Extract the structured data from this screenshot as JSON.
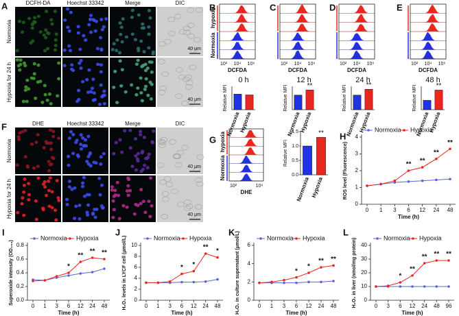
{
  "figure": {
    "micrographs": [
      {
        "label": "A",
        "columns": [
          "DCFH-DA",
          "Hoechst 33342",
          "Merge",
          "DIC"
        ],
        "rows": [
          "Normoxia",
          "Hypoxia for 24 h"
        ],
        "scale_bar": "40 μm"
      },
      {
        "label": "F",
        "columns": [
          "DHE",
          "Hoechst 33342",
          "Merge",
          "DIC"
        ],
        "rows": [
          "Normoxia",
          "Hypoxia for 24 h"
        ],
        "scale_bar": "40 μm"
      }
    ],
    "flow_panels": [
      {
        "rows": [
          "hypoxia",
          "Normoxia"
        ],
        "xlabel": "DCFDA",
        "xticks": [
          "10²",
          "10⁴",
          "10⁶"
        ]
      },
      {
        "xlabel": "DCFDA",
        "xticks": [
          "10²",
          "10⁴",
          "10⁶"
        ]
      },
      {
        "xlabel": "DCFDA",
        "xticks": [
          "10²",
          "10⁴",
          "10⁶"
        ]
      },
      {
        "xlabel": "DCFDA",
        "xticks": [
          "10²",
          "10⁴",
          "10⁶"
        ]
      },
      {
        "label": "G",
        "rows": [
          "hypoxia",
          "Normoxia"
        ],
        "xlabel": "DHE",
        "xticks": [
          "10²",
          "10⁶"
        ]
      }
    ]
  },
  "chart_data": [
    {
      "type": "bar",
      "label": "B",
      "title": "0 h",
      "ylabel": "Relative MFI",
      "categories": [
        "Normoxia",
        "Hypoxia"
      ],
      "values": [
        1.0,
        0.95
      ],
      "colors": [
        "#1f32e6",
        "#e8281e"
      ],
      "significance": [
        null,
        null
      ],
      "ylim": [
        0,
        1.5
      ]
    },
    {
      "type": "bar",
      "label": "C",
      "title": "12 h",
      "ylabel": "Relative MFI",
      "categories": [
        "Normoxia",
        "Hypoxia"
      ],
      "values": [
        1.0,
        1.35
      ],
      "colors": [
        "#1f32e6",
        "#e8281e"
      ],
      "significance": [
        null,
        "**"
      ],
      "ylim": [
        0,
        1.6
      ]
    },
    {
      "type": "bar",
      "label": "D",
      "title": "24 h",
      "ylabel": "Relative MFI",
      "categories": [
        "Normoxia",
        "Hypoxia"
      ],
      "values": [
        1.0,
        1.4
      ],
      "colors": [
        "#1f32e6",
        "#e8281e"
      ],
      "significance": [
        null,
        "**"
      ],
      "ylim": [
        0,
        1.6
      ]
    },
    {
      "type": "bar",
      "label": "E",
      "title": "48 h",
      "ylabel": "Relative MFI",
      "categories": [
        "Normoxia",
        "Hypoxia"
      ],
      "values": [
        1.0,
        2.1
      ],
      "colors": [
        "#1f32e6",
        "#e8281e"
      ],
      "significance": [
        null,
        "**"
      ],
      "ylim": [
        0,
        2.5
      ]
    },
    {
      "type": "bar",
      "ylabel": "Relative MFI",
      "categories": [
        "Normoxia",
        "Hypoxia"
      ],
      "values": [
        1.0,
        1.3
      ],
      "colors": [
        "#1f32e6",
        "#e8281e"
      ],
      "significance": [
        null,
        "**"
      ],
      "ylim": [
        0,
        1.5
      ],
      "yticks": [
        {
          "value": 0,
          "label": "0.0"
        },
        0.5,
        {
          "value": 1,
          "label": "1.0"
        },
        1.5
      ]
    },
    {
      "type": "line",
      "label": "H",
      "ylabel": "ROS level (Fluorescence)",
      "xlabel": "Time (h)",
      "categories": [
        "0",
        "1",
        "3",
        "6",
        "12",
        "24",
        "48"
      ],
      "series": [
        {
          "name": "Normoxia",
          "color": "#5a64d8",
          "values": [
            1.1,
            1.2,
            1.3,
            1.35,
            1.4,
            1.45,
            1.5
          ]
        },
        {
          "name": "Hypoxia",
          "color": "#e8281e",
          "values": [
            1.1,
            1.2,
            1.4,
            2.0,
            2.2,
            2.7,
            3.3
          ],
          "significance": [
            null,
            null,
            null,
            "**",
            "**",
            "**",
            "**"
          ]
        }
      ],
      "ylim": [
        0,
        4
      ],
      "yticks": [
        0,
        1,
        2,
        3,
        4
      ]
    },
    {
      "type": "line",
      "label": "I",
      "ylabel": "Superoxide intensity (OD₄₅₀)",
      "xlabel": "Time (h)",
      "categories": [
        "0",
        "1",
        "3",
        "6",
        "12",
        "24",
        "48"
      ],
      "series": [
        {
          "name": "Normoxia",
          "color": "#5a64d8",
          "values": [
            0.3,
            0.29,
            0.33,
            0.36,
            0.39,
            0.41,
            0.46
          ]
        },
        {
          "name": "Hypoxia",
          "color": "#e8281e",
          "values": [
            0.28,
            0.29,
            0.35,
            0.4,
            0.56,
            0.62,
            0.6
          ],
          "significance": [
            null,
            null,
            null,
            "*",
            "**",
            "**",
            "**"
          ]
        }
      ],
      "ylim": [
        0,
        0.8
      ],
      "yticks": [
        {
          "value": 0,
          "label": "0.0"
        },
        0.2,
        0.4,
        0.6,
        0.8
      ]
    },
    {
      "type": "line",
      "label": "J",
      "ylabel": "H₂O₂ levels in LYCF cell (μmol/L)",
      "xlabel": "Time (h)",
      "categories": [
        "0",
        "1",
        "3",
        "6",
        "12",
        "24",
        "48"
      ],
      "series": [
        {
          "name": "Normoxia",
          "color": "#5a64d8",
          "values": [
            3.2,
            3.2,
            3.2,
            3.3,
            3.3,
            3.4,
            3.8
          ]
        },
        {
          "name": "Hypoxia",
          "color": "#e8281e",
          "values": [
            3.2,
            3.2,
            3.4,
            4.8,
            5.3,
            8.5,
            7.8
          ],
          "significance": [
            null,
            null,
            null,
            "*",
            "*",
            "**",
            "*"
          ]
        }
      ],
      "ylim": [
        0,
        10
      ],
      "yticks": [
        0,
        2,
        4,
        6,
        8,
        10
      ]
    },
    {
      "type": "line",
      "label": "K",
      "ylabel": "H₂O₂ in culture supernatant (μmol/L)",
      "xlabel": "Time (h)",
      "categories": [
        "0",
        "1",
        "3",
        "6",
        "12",
        "24",
        "48"
      ],
      "series": [
        {
          "name": "Normoxia",
          "color": "#5a64d8",
          "values": [
            1.9,
            1.9,
            1.9,
            1.9,
            2.0,
            2.0,
            2.1
          ]
        },
        {
          "name": "Hypoxia",
          "color": "#e8281e",
          "values": [
            1.9,
            2.0,
            2.2,
            2.5,
            3.0,
            3.6,
            3.8
          ],
          "significance": [
            null,
            null,
            null,
            "*",
            "*",
            "**",
            "**"
          ]
        }
      ],
      "ylim": [
        0,
        6
      ],
      "yticks": [
        0,
        2,
        4,
        6
      ]
    },
    {
      "type": "line",
      "label": "L",
      "ylabel": "H₂O₂ in liver (nmol/mg protein)",
      "xlabel": "Time (h)",
      "categories": [
        "0",
        "3",
        "6",
        "12",
        "24",
        "48",
        "96"
      ],
      "series": [
        {
          "name": "Normoxia",
          "color": "#5a64d8",
          "values": [
            10,
            10,
            10,
            10,
            10,
            10,
            10
          ]
        },
        {
          "name": "Hypoxia",
          "color": "#e8281e",
          "values": [
            10,
            10.5,
            13,
            18,
            27,
            29,
            29
          ],
          "significance": [
            null,
            null,
            "*",
            "**",
            "**",
            "**",
            "**"
          ]
        }
      ],
      "ylim": [
        0,
        40
      ],
      "yticks": [
        0,
        10,
        20,
        30,
        40
      ]
    }
  ]
}
